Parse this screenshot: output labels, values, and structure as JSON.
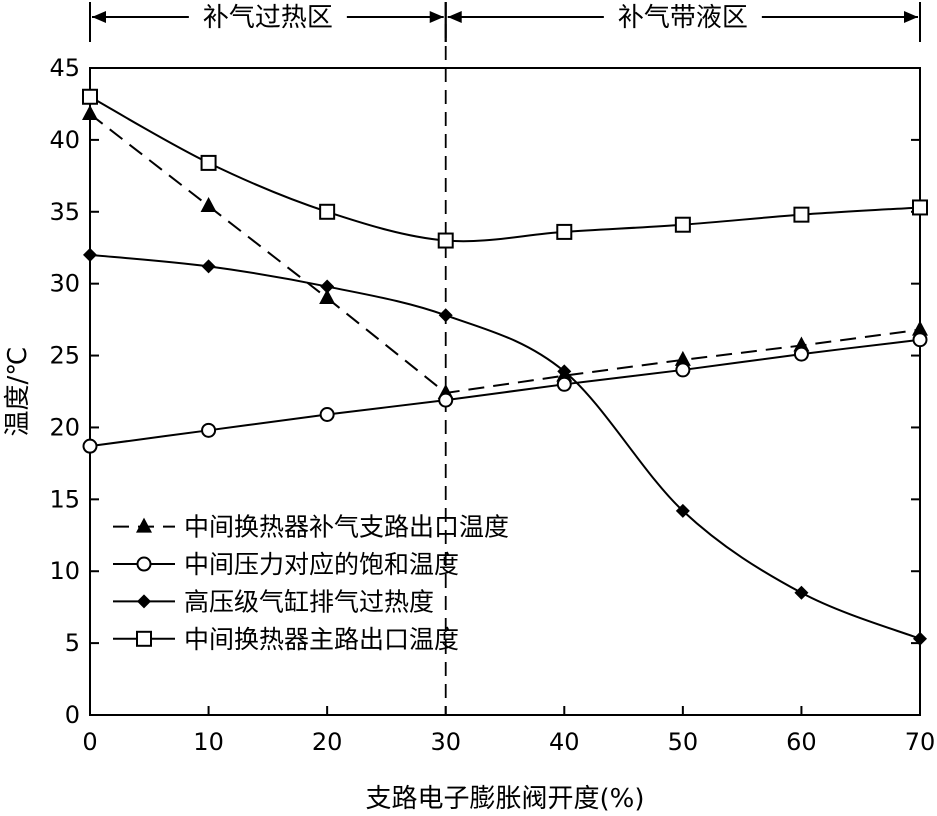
{
  "chart_data": {
    "type": "line",
    "xlabel": "支路电子膨胀阀开度(%)",
    "ylabel": "温度/℃",
    "xlim": [
      0,
      70
    ],
    "ylim": [
      0,
      45
    ],
    "x_ticks": [
      0,
      10,
      20,
      30,
      40,
      50,
      60,
      70
    ],
    "y_ticks": [
      0,
      5,
      10,
      15,
      20,
      25,
      30,
      35,
      40,
      45
    ],
    "grid": false,
    "legend_position": "lower-left",
    "regions": [
      {
        "label": "补气过热区",
        "x_range": [
          0,
          30
        ]
      },
      {
        "label": "补气带液区",
        "x_range": [
          30,
          70
        ]
      }
    ],
    "divider_x": 30,
    "series": [
      {
        "name": "中间换热器补气支路出口温度",
        "marker": "filled-triangle",
        "line": "dashed",
        "x": [
          0,
          10,
          20,
          30,
          40,
          50,
          60,
          70
        ],
        "values": [
          41.8,
          35.4,
          29.0,
          22.4,
          23.6,
          24.7,
          25.7,
          26.8
        ]
      },
      {
        "name": "中间压力对应的饱和温度",
        "marker": "open-circle",
        "line": "solid",
        "x": [
          0,
          10,
          20,
          30,
          40,
          50,
          60,
          70
        ],
        "values": [
          18.7,
          19.8,
          20.9,
          21.9,
          23.0,
          24.0,
          25.1,
          26.1
        ]
      },
      {
        "name": "高压级气缸排气过热度",
        "marker": "filled-diamond",
        "line": "solid",
        "x": [
          0,
          10,
          20,
          30,
          40,
          50,
          60,
          70
        ],
        "values": [
          32.0,
          31.2,
          29.8,
          27.8,
          23.9,
          14.2,
          8.5,
          5.3
        ]
      },
      {
        "name": "中间换热器主路出口温度",
        "marker": "open-square",
        "line": "solid",
        "x": [
          0,
          10,
          20,
          30,
          40,
          50,
          60,
          70
        ],
        "values": [
          43.0,
          38.4,
          35.0,
          33.0,
          33.6,
          34.1,
          34.8,
          35.3
        ]
      }
    ]
  }
}
